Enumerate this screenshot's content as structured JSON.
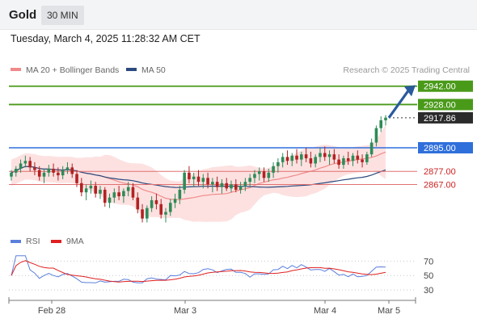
{
  "header": {
    "title": "Gold",
    "timeframe": "30 MIN"
  },
  "datetime": "Tuesday, March 4, 2025 11:28:32 AM CET",
  "legend": {
    "main": [
      {
        "label": "MA 20 + Bollinger Bands",
        "color": "#f08a8a"
      },
      {
        "label": "MA 50",
        "color": "#2b4a7e"
      }
    ],
    "rsi": [
      {
        "label": "RSI",
        "color": "#5b7fdc"
      },
      {
        "label": "9MA",
        "color": "#e02020"
      }
    ]
  },
  "credit": "Research © 2025 Trading Central",
  "colors": {
    "up": "#2e8b57",
    "down": "#b22222",
    "resistance": "#4a9a1a",
    "support_blue": "#2f6fdb",
    "support_red": "#e07070",
    "bb_fill": "#fcd9d9",
    "ma20": "#f08a8a",
    "ma50": "#2b4a7e",
    "arrow": "#2a5a9e"
  },
  "chart_data": {
    "type": "candlestick",
    "price_axis": {
      "min": 2834,
      "max": 2948
    },
    "x_labels": [
      "Feb 28",
      "Mar 3",
      "Mar 4",
      "Mar 5"
    ],
    "levels": [
      {
        "value": 2942.0,
        "label": "2942.00",
        "kind": "resistance"
      },
      {
        "value": 2928.0,
        "label": "2928.00",
        "kind": "resistance"
      },
      {
        "value": 2917.86,
        "label": "2917.86",
        "kind": "current"
      },
      {
        "value": 2895.0,
        "label": "2895.00",
        "kind": "pivot"
      },
      {
        "value": 2877.0,
        "label": "2877.00",
        "kind": "support"
      },
      {
        "value": 2867.0,
        "label": "2867.00",
        "kind": "support"
      }
    ],
    "candles": [
      [
        2873,
        2878,
        2870,
        2876
      ],
      [
        2876,
        2881,
        2873,
        2879
      ],
      [
        2879,
        2886,
        2876,
        2883
      ],
      [
        2883,
        2889,
        2880,
        2885
      ],
      [
        2885,
        2888,
        2877,
        2880
      ],
      [
        2880,
        2884,
        2874,
        2878
      ],
      [
        2878,
        2881,
        2870,
        2873
      ],
      [
        2873,
        2879,
        2868,
        2876
      ],
      [
        2876,
        2882,
        2873,
        2879
      ],
      [
        2879,
        2883,
        2873,
        2876
      ],
      [
        2876,
        2880,
        2870,
        2874
      ],
      [
        2874,
        2881,
        2871,
        2878
      ],
      [
        2878,
        2884,
        2875,
        2880
      ],
      [
        2880,
        2883,
        2872,
        2875
      ],
      [
        2875,
        2878,
        2865,
        2868
      ],
      [
        2868,
        2872,
        2858,
        2861
      ],
      [
        2861,
        2867,
        2855,
        2864
      ],
      [
        2864,
        2870,
        2860,
        2866
      ],
      [
        2866,
        2869,
        2857,
        2860
      ],
      [
        2860,
        2866,
        2856,
        2863
      ],
      [
        2863,
        2865,
        2850,
        2853
      ],
      [
        2853,
        2860,
        2849,
        2857
      ],
      [
        2857,
        2864,
        2853,
        2861
      ],
      [
        2861,
        2866,
        2855,
        2858
      ],
      [
        2858,
        2864,
        2853,
        2862
      ],
      [
        2862,
        2869,
        2858,
        2865
      ],
      [
        2865,
        2868,
        2855,
        2857
      ],
      [
        2857,
        2861,
        2845,
        2848
      ],
      [
        2848,
        2852,
        2838,
        2841
      ],
      [
        2841,
        2851,
        2838,
        2849
      ],
      [
        2849,
        2858,
        2846,
        2855
      ],
      [
        2855,
        2860,
        2848,
        2852
      ],
      [
        2852,
        2856,
        2841,
        2844
      ],
      [
        2844,
        2849,
        2838,
        2846
      ],
      [
        2846,
        2856,
        2843,
        2853
      ],
      [
        2853,
        2860,
        2849,
        2856
      ],
      [
        2856,
        2866,
        2852,
        2863
      ],
      [
        2863,
        2878,
        2860,
        2876
      ],
      [
        2876,
        2881,
        2868,
        2871
      ],
      [
        2871,
        2876,
        2865,
        2873
      ],
      [
        2873,
        2878,
        2866,
        2869
      ],
      [
        2869,
        2875,
        2864,
        2872
      ],
      [
        2872,
        2876,
        2864,
        2867
      ],
      [
        2867,
        2872,
        2861,
        2869
      ],
      [
        2869,
        2873,
        2862,
        2865
      ],
      [
        2865,
        2871,
        2860,
        2868
      ],
      [
        2868,
        2872,
        2862,
        2864
      ],
      [
        2864,
        2870,
        2861,
        2867
      ],
      [
        2867,
        2871,
        2861,
        2863
      ],
      [
        2863,
        2869,
        2860,
        2866
      ],
      [
        2866,
        2872,
        2862,
        2869
      ],
      [
        2869,
        2875,
        2865,
        2872
      ],
      [
        2872,
        2878,
        2868,
        2875
      ],
      [
        2875,
        2880,
        2870,
        2877
      ],
      [
        2877,
        2880,
        2869,
        2872
      ],
      [
        2872,
        2879,
        2869,
        2876
      ],
      [
        2876,
        2884,
        2872,
        2881
      ],
      [
        2881,
        2887,
        2876,
        2884
      ],
      [
        2884,
        2891,
        2880,
        2888
      ],
      [
        2888,
        2893,
        2882,
        2885
      ],
      [
        2885,
        2891,
        2881,
        2889
      ],
      [
        2889,
        2894,
        2883,
        2886
      ],
      [
        2886,
        2892,
        2881,
        2890
      ],
      [
        2890,
        2895,
        2884,
        2887
      ],
      [
        2887,
        2892,
        2880,
        2883
      ],
      [
        2883,
        2890,
        2880,
        2888
      ],
      [
        2888,
        2895,
        2884,
        2891
      ],
      [
        2891,
        2896,
        2885,
        2888
      ],
      [
        2888,
        2893,
        2882,
        2890
      ],
      [
        2890,
        2894,
        2883,
        2886
      ],
      [
        2886,
        2890,
        2879,
        2882
      ],
      [
        2882,
        2889,
        2879,
        2887
      ],
      [
        2887,
        2892,
        2882,
        2885
      ],
      [
        2885,
        2891,
        2881,
        2889
      ],
      [
        2889,
        2893,
        2883,
        2886
      ],
      [
        2886,
        2890,
        2880,
        2884
      ],
      [
        2884,
        2892,
        2882,
        2890
      ],
      [
        2890,
        2902,
        2888,
        2899
      ],
      [
        2899,
        2912,
        2896,
        2910
      ],
      [
        2910,
        2919,
        2907,
        2916
      ],
      [
        2916,
        2920,
        2912,
        2918
      ]
    ],
    "rsi_axis": {
      "min": 20,
      "max": 85,
      "ticks": [
        70,
        50,
        30
      ]
    }
  }
}
